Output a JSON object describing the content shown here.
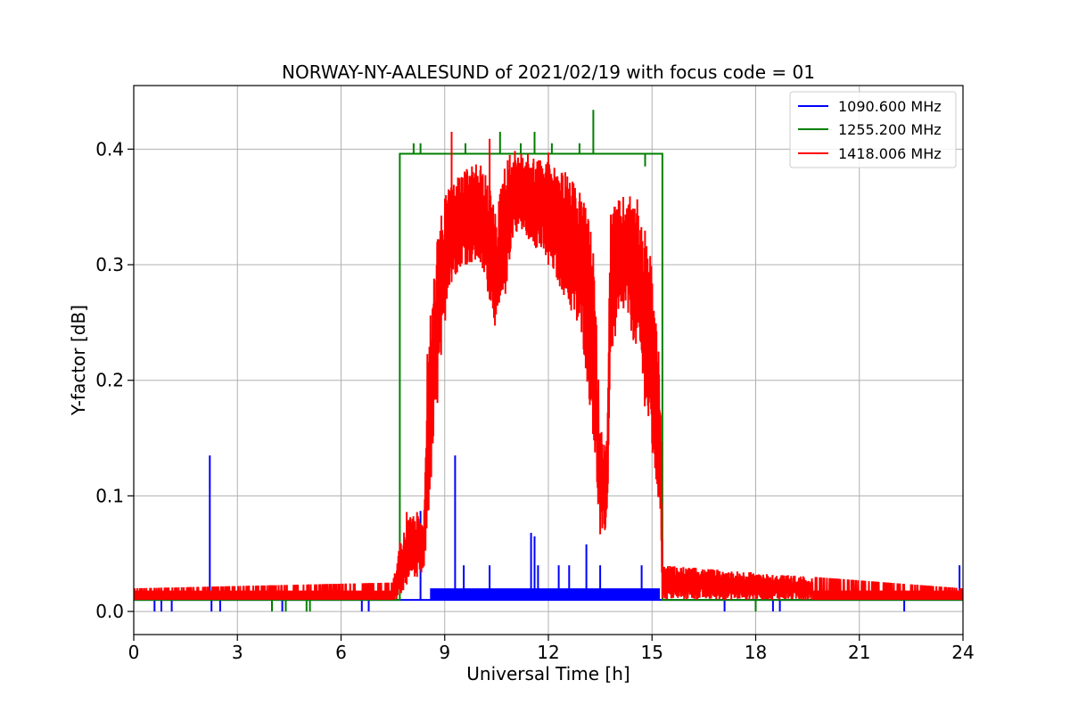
{
  "chart_data": {
    "type": "line",
    "title": "NORWAY-NY-AALESUND of 2021/02/19 with focus code = 01",
    "xlabel": "Universal Time [h]",
    "ylabel": "Y-factor [dB]",
    "xlim": [
      0,
      24
    ],
    "ylim": [
      -0.02,
      0.455
    ],
    "x_ticks": [
      0,
      3,
      6,
      9,
      12,
      15,
      18,
      21,
      24
    ],
    "y_ticks": [
      0.0,
      0.1,
      0.2,
      0.3,
      0.4
    ],
    "x_tick_labels": [
      "0",
      "3",
      "6",
      "9",
      "12",
      "15",
      "18",
      "21",
      "24"
    ],
    "y_tick_labels": [
      "0.0",
      "0.1",
      "0.2",
      "0.3",
      "0.4"
    ],
    "grid": true,
    "legend_position": "top-right",
    "series": [
      {
        "name": "1090.600 MHz",
        "color": "#0000ff",
        "baseline": 0.01,
        "spikes": [
          {
            "x": 0.6,
            "y": 0.0
          },
          {
            "x": 0.8,
            "y": 0.0
          },
          {
            "x": 1.1,
            "y": 0.0
          },
          {
            "x": 2.2,
            "y": 0.135
          },
          {
            "x": 2.25,
            "y": 0.0
          },
          {
            "x": 2.4,
            "y": 0.02
          },
          {
            "x": 2.5,
            "y": 0.0
          },
          {
            "x": 4.3,
            "y": 0.0
          },
          {
            "x": 6.6,
            "y": 0.0
          },
          {
            "x": 6.8,
            "y": 0.0
          },
          {
            "x": 8.3,
            "y": 0.087
          },
          {
            "x": 8.6,
            "y": 0.02
          },
          {
            "x": 9.3,
            "y": 0.135
          },
          {
            "x": 9.55,
            "y": 0.04
          },
          {
            "x": 10.3,
            "y": 0.04
          },
          {
            "x": 11.5,
            "y": 0.068
          },
          {
            "x": 11.6,
            "y": 0.065
          },
          {
            "x": 11.7,
            "y": 0.04
          },
          {
            "x": 12.3,
            "y": 0.04
          },
          {
            "x": 12.6,
            "y": 0.04
          },
          {
            "x": 13.1,
            "y": 0.058
          },
          {
            "x": 13.5,
            "y": 0.04
          },
          {
            "x": 14.7,
            "y": 0.04
          },
          {
            "x": 15.1,
            "y": 0.02
          },
          {
            "x": 17.1,
            "y": 0.0
          },
          {
            "x": 18.5,
            "y": 0.0
          },
          {
            "x": 18.7,
            "y": 0.0
          },
          {
            "x": 22.3,
            "y": 0.0
          },
          {
            "x": 23.9,
            "y": 0.04
          }
        ]
      },
      {
        "name": "1255.200 MHz",
        "color": "#008000",
        "baseline": 0.01,
        "step_high": {
          "x_start": 7.7,
          "x_end": 15.3,
          "y": 0.396
        },
        "spikes": [
          {
            "x": 4.0,
            "y": 0.0
          },
          {
            "x": 4.4,
            "y": 0.0
          },
          {
            "x": 5.0,
            "y": 0.0
          },
          {
            "x": 5.1,
            "y": 0.0
          },
          {
            "x": 8.1,
            "y": 0.405
          },
          {
            "x": 8.3,
            "y": 0.405
          },
          {
            "x": 9.6,
            "y": 0.405
          },
          {
            "x": 10.6,
            "y": 0.415
          },
          {
            "x": 11.2,
            "y": 0.405
          },
          {
            "x": 11.6,
            "y": 0.415
          },
          {
            "x": 12.1,
            "y": 0.405
          },
          {
            "x": 12.9,
            "y": 0.405
          },
          {
            "x": 13.3,
            "y": 0.434
          },
          {
            "x": 14.8,
            "y": 0.385
          },
          {
            "x": 18.0,
            "y": 0.0
          }
        ]
      },
      {
        "name": "1418.006 MHz",
        "color": "#ff0000",
        "envelope": [
          [
            0.0,
            0.01,
            0.02
          ],
          [
            7.5,
            0.01,
            0.025
          ],
          [
            7.7,
            0.01,
            0.06
          ],
          [
            8.0,
            0.03,
            0.086
          ],
          [
            8.4,
            0.03,
            0.08
          ],
          [
            8.5,
            0.07,
            0.23
          ],
          [
            8.8,
            0.18,
            0.33
          ],
          [
            9.1,
            0.28,
            0.37
          ],
          [
            9.5,
            0.3,
            0.38
          ],
          [
            10.0,
            0.3,
            0.39
          ],
          [
            10.3,
            0.27,
            0.37
          ],
          [
            10.5,
            0.24,
            0.34
          ],
          [
            10.7,
            0.26,
            0.39
          ],
          [
            11.0,
            0.33,
            0.4
          ],
          [
            11.5,
            0.32,
            0.395
          ],
          [
            12.0,
            0.3,
            0.39
          ],
          [
            12.5,
            0.27,
            0.38
          ],
          [
            13.0,
            0.23,
            0.36
          ],
          [
            13.3,
            0.15,
            0.32
          ],
          [
            13.5,
            0.06,
            0.16
          ],
          [
            13.7,
            0.07,
            0.15
          ],
          [
            13.8,
            0.22,
            0.35
          ],
          [
            14.2,
            0.26,
            0.36
          ],
          [
            14.6,
            0.22,
            0.36
          ],
          [
            15.0,
            0.13,
            0.3
          ],
          [
            15.25,
            0.08,
            0.2
          ],
          [
            15.3,
            0.01,
            0.04
          ],
          [
            24.0,
            0.01,
            0.02
          ]
        ],
        "peaks": [
          {
            "x": 9.2,
            "y": 0.415
          },
          {
            "x": 10.3,
            "y": 0.409
          },
          {
            "x": 12.0,
            "y": 0.397
          },
          {
            "x": 7.9,
            "y": 0.086
          },
          {
            "x": 8.2,
            "y": 0.086
          }
        ]
      }
    ]
  }
}
